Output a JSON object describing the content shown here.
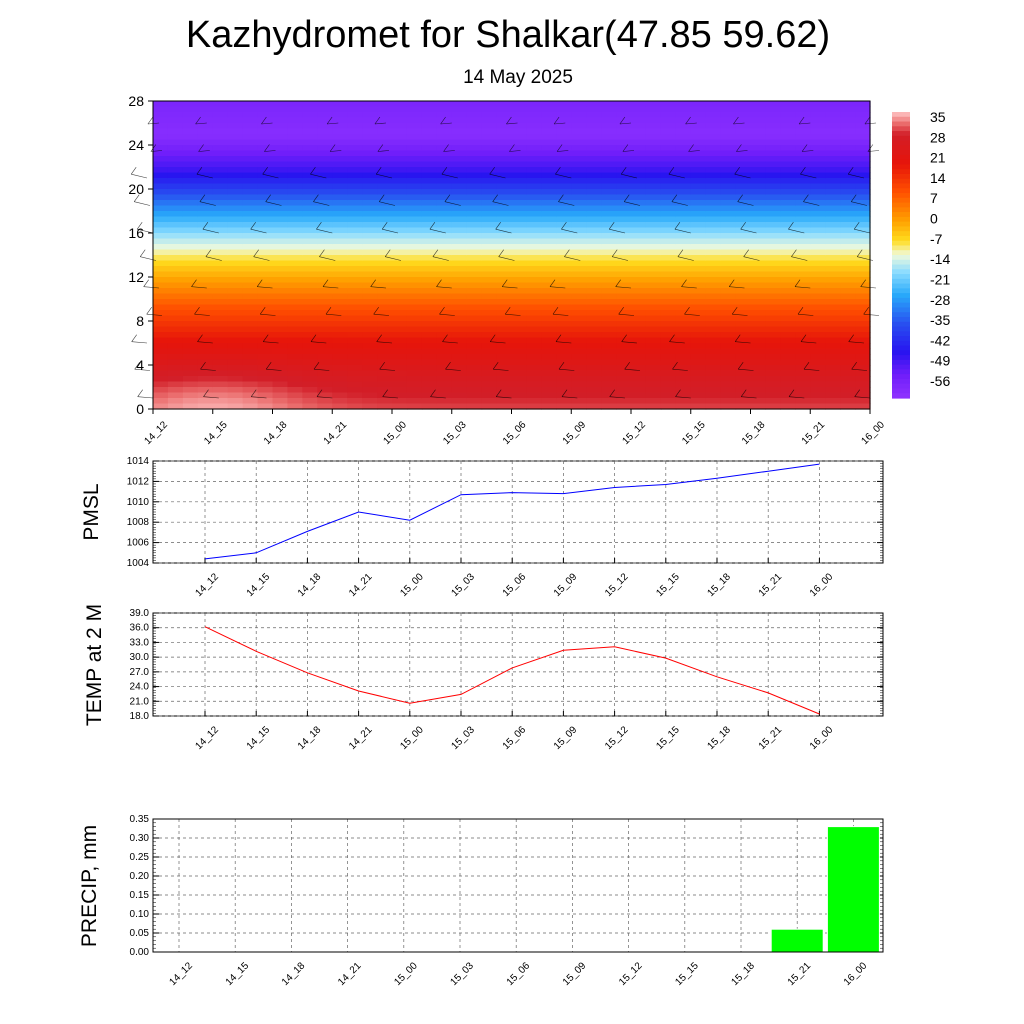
{
  "header": {
    "title": "Kazhydromet for Shalkar(47.85 59.62)",
    "subtitle": "14 May 2025"
  },
  "chart_data": [
    {
      "type": "heatmap",
      "description_panel": "cross-section",
      "x": [
        "14_12",
        "14_15",
        "14_18",
        "14_21",
        "15_00",
        "15_03",
        "15_06",
        "15_09",
        "15_12",
        "15_15",
        "15_18",
        "15_21",
        "16_00"
      ],
      "y_ticks": [
        0,
        4,
        8,
        12,
        16,
        20,
        24,
        28
      ],
      "ylim": [
        0,
        28
      ],
      "colorbar_labels": [
        "35",
        "28",
        "21",
        "14",
        "7",
        "0",
        "-7",
        "-14",
        "-21",
        "-28",
        "-35",
        "-42",
        "-49",
        "-56"
      ],
      "colorbar_range": [
        -60,
        38
      ],
      "rows_bottom_to_top": [
        32,
        27,
        20,
        10,
        -2,
        -15,
        -30,
        -47,
        -58,
        -55
      ],
      "hot_spots": [
        {
          "x": "14_15",
          "y": 0.5,
          "value": 37
        },
        {
          "x": "15_12",
          "y": 0.5,
          "value": 32
        }
      ],
      "wind_barbs": true
    },
    {
      "type": "line",
      "ylabel": "PMSL",
      "x": [
        "14_12",
        "14_15",
        "14_18",
        "14_21",
        "15_00",
        "15_03",
        "15_06",
        "15_09",
        "15_12",
        "15_15",
        "15_18",
        "15_21",
        "16_00"
      ],
      "series": [
        {
          "values": [
            1004.4,
            1005.0,
            1007.1,
            1009.0,
            1008.2,
            1010.7,
            1010.9,
            1010.8,
            1011.4,
            1011.7,
            1012.3,
            1013.0,
            1013.7
          ]
        }
      ],
      "ylim": [
        1004,
        1014
      ],
      "yticks": [
        "1004",
        "1006",
        "1008",
        "1010",
        "1012",
        "1014"
      ],
      "color": "#0000ff",
      "grid": true
    },
    {
      "type": "line",
      "ylabel": "TEMP at 2 M",
      "x": [
        "14_12",
        "14_15",
        "14_18",
        "14_21",
        "15_00",
        "15_03",
        "15_06",
        "15_09",
        "15_12",
        "15_15",
        "15_18",
        "15_21",
        "16_00"
      ],
      "series": [
        {
          "values": [
            36.2,
            31.2,
            26.8,
            23.1,
            20.6,
            22.4,
            27.8,
            31.4,
            32.1,
            29.8,
            26.0,
            22.7,
            18.4
          ]
        }
      ],
      "ylim": [
        18,
        39
      ],
      "yticks": [
        "18.0",
        "21.0",
        "24.0",
        "27.0",
        "30.0",
        "33.0",
        "36.0",
        "39.0"
      ],
      "color": "#ff0000",
      "grid": true
    },
    {
      "type": "bar",
      "ylabel": "PRECIP, mm",
      "categories": [
        "14_12",
        "14_15",
        "14_18",
        "14_21",
        "15_00",
        "15_03",
        "15_06",
        "15_09",
        "15_12",
        "15_15",
        "15_18",
        "15_21",
        "16_00"
      ],
      "values": [
        0,
        0,
        0,
        0,
        0,
        0,
        0,
        0,
        0,
        0,
        0,
        0.06,
        0.33
      ],
      "ylim": [
        0,
        0.35
      ],
      "yticks": [
        "0.00",
        "0.05",
        "0.10",
        "0.15",
        "0.20",
        "0.25",
        "0.30",
        "0.35"
      ],
      "color": "#00ff00",
      "grid": true
    }
  ]
}
